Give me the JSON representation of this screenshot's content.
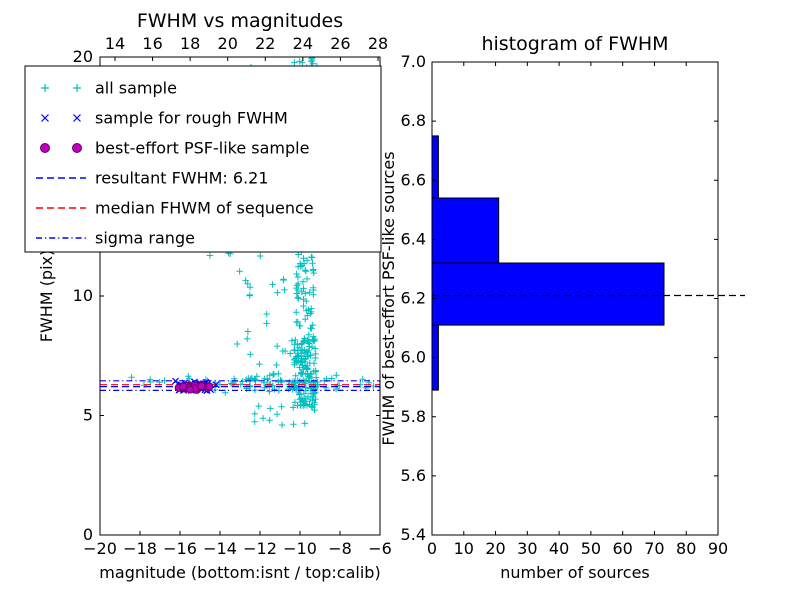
{
  "figure": {
    "background": "#ffffff"
  },
  "chart_data": [
    {
      "type": "scatter",
      "title": "FWHM vs magnitudes",
      "xlabel": "magnitude (bottom:isnt / top:calib)",
      "ylabel": "FWHM (pix)",
      "xlim": [
        -20,
        -6
      ],
      "ylim": [
        0,
        20
      ],
      "xticks": [
        -20,
        -18,
        -16,
        -14,
        -12,
        -10,
        -8,
        -6
      ],
      "top_xticks": [
        14,
        16,
        18,
        20,
        22,
        24,
        26,
        28
      ],
      "yticks": [
        0,
        5,
        10,
        15,
        20
      ],
      "grid": false,
      "legend_position": "upper left",
      "legend_entries": [
        {
          "label": "all sample",
          "glyph": "plus",
          "color": "#00bfbf"
        },
        {
          "label": "sample for rough FWHM",
          "glyph": "x",
          "color": "#0000ff"
        },
        {
          "label": "best-effort PSF-like sample",
          "glyph": "circle",
          "color": "#bf00bf"
        },
        {
          "label": "resultant FWHM: 6.21",
          "glyph": "dashed",
          "color": "#0000ff"
        },
        {
          "label": "median FHWM of sequence",
          "glyph": "dashed",
          "color": "#ff0000"
        },
        {
          "label": "sigma range",
          "glyph": "dashdot",
          "color": "#0000ff"
        }
      ],
      "series": [
        {
          "name": "all sample",
          "marker": "plus",
          "color": "#00bfbf",
          "clusters": [
            {
              "type": "uniform",
              "x": [
                -10.3,
                -9.2
              ],
              "y": [
                5.2,
                8.2
              ],
              "count": 150
            },
            {
              "type": "uniform",
              "x": [
                -10.2,
                -9.3
              ],
              "y": [
                8.2,
                13.0
              ],
              "count": 70
            },
            {
              "type": "uniform",
              "x": [
                -10.3,
                -9.4
              ],
              "y": [
                13.0,
                19.0
              ],
              "count": 25
            },
            {
              "type": "uniform",
              "x": [
                -10.3,
                -9.0
              ],
              "y": [
                19.0,
                20.0
              ],
              "count": 30
            },
            {
              "type": "gauss",
              "cx": -11.5,
              "cy": 6.35,
              "sx": 2.2,
              "sy": 0.18,
              "count": 95
            },
            {
              "type": "uniform",
              "x": [
                -13.2,
                -10.4
              ],
              "y": [
                7.0,
                12.5
              ],
              "count": 30
            },
            {
              "type": "uniform",
              "x": [
                -12.5,
                -8.2
              ],
              "y": [
                4.6,
                5.4
              ],
              "count": 12
            },
            {
              "type": "uniform",
              "x": [
                -16.2,
                -13.3
              ],
              "y": [
                10.5,
                12.5
              ],
              "count": 5
            },
            {
              "type": "uniform",
              "x": [
                -12.6,
                -11.8
              ],
              "y": [
                18.8,
                19.8
              ],
              "count": 3
            }
          ]
        },
        {
          "name": "sample for rough FWHM",
          "marker": "x",
          "color": "#0000ff",
          "clusters": [
            {
              "type": "gauss",
              "cx": -15.3,
              "cy": 6.22,
              "sx": 0.5,
              "sy": 0.1,
              "count": 40
            }
          ]
        },
        {
          "name": "best-effort PSF-like sample",
          "marker": "circle",
          "color": "#bf00bf",
          "edge": "#6a006a",
          "clusters": [
            {
              "type": "gauss",
              "cx": -15.3,
              "cy": 6.2,
              "sx": 0.38,
              "sy": 0.08,
              "count": 35
            }
          ]
        }
      ],
      "hlines": [
        {
          "name": "resultant FWHM",
          "y": 6.21,
          "style": "dashed",
          "color": "#0000ff"
        },
        {
          "name": "median FWHM of sequence",
          "y": 6.29,
          "style": "dashed",
          "color": "#ff0000"
        },
        {
          "name": "sigma range low",
          "y": 6.05,
          "style": "dashdot",
          "color": "#0000ff"
        },
        {
          "name": "sigma range high",
          "y": 6.45,
          "style": "dashdot",
          "color": "#0000ff"
        }
      ]
    },
    {
      "type": "bar",
      "orientation": "horizontal",
      "title": "histogram of FWHM",
      "xlabel": "number of sources",
      "ylabel": "FWHM of best-effort PSF-like sources",
      "xlim": [
        0,
        90
      ],
      "ylim": [
        5.4,
        7.0
      ],
      "xticks": [
        0,
        10,
        20,
        30,
        40,
        50,
        60,
        70,
        80,
        90
      ],
      "yticks": [
        5.4,
        5.6,
        5.8,
        6.0,
        6.2,
        6.4,
        6.6,
        6.8,
        7.0
      ],
      "bar_color": "#0000ff",
      "bar_edge": "#000000",
      "bin_edges": [
        5.89,
        6.11,
        6.32,
        6.54,
        6.75
      ],
      "counts": [
        2,
        73,
        21,
        2
      ],
      "hline": {
        "y": 6.21,
        "style": "dashed",
        "color": "#000000"
      }
    }
  ]
}
